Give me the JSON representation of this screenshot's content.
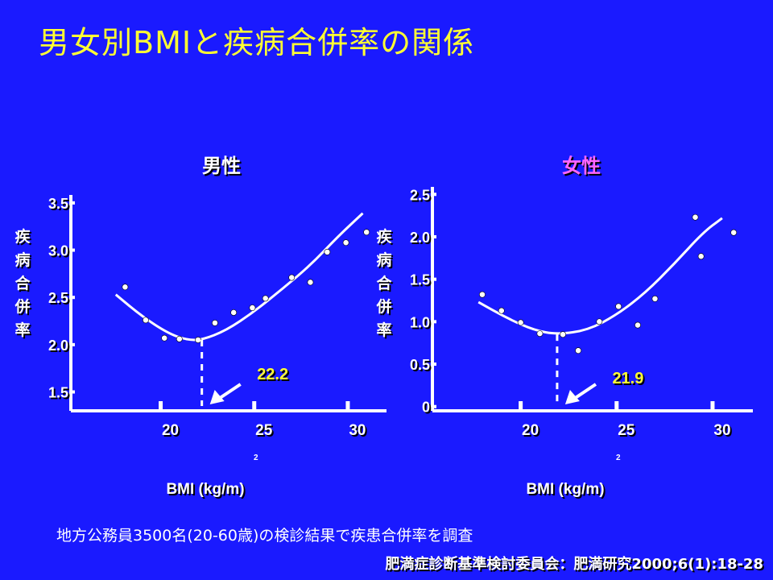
{
  "title": "男女別BMIと疾病合併率の関係",
  "note": "地方公務員3500名(20-60歳)の検診結果で疾患合併率を調査",
  "reference": "肥満症診断基準検討委員会：肥満研究2000;6(1):18-28",
  "colors": {
    "background": "#1a1aff",
    "title": "#ffff33",
    "male_title": "#ffffff",
    "female_title": "#ff66ff",
    "marks": "#ffffff"
  },
  "chart_data": [
    {
      "type": "scatter",
      "title": "男性",
      "xlabel": "BMI (kg/m)",
      "xlabel_superscript": "2",
      "ylabel": "疾病合併率",
      "xlim": [
        15.2,
        32.8
      ],
      "ylim": [
        1.3,
        3.55
      ],
      "xticks": [
        20,
        25,
        30
      ],
      "yticks": [
        1.5,
        2.0,
        2.5,
        3.0,
        3.5
      ],
      "ytick_labels": [
        "1.5",
        "2.0",
        "2.5",
        "3.0",
        "3.5"
      ],
      "points": [
        [
          18.1,
          2.61
        ],
        [
          19.2,
          2.26
        ],
        [
          20.2,
          2.07
        ],
        [
          21.0,
          2.06
        ],
        [
          22.0,
          2.05
        ],
        [
          22.9,
          2.23
        ],
        [
          23.9,
          2.34
        ],
        [
          24.9,
          2.39
        ],
        [
          25.6,
          2.49
        ],
        [
          27.0,
          2.71
        ],
        [
          28.0,
          2.66
        ],
        [
          28.9,
          2.98
        ],
        [
          29.9,
          3.08
        ],
        [
          31.0,
          3.19
        ]
      ],
      "fit_curve": [
        [
          17.6,
          2.53
        ],
        [
          19.0,
          2.3
        ],
        [
          20.4,
          2.12
        ],
        [
          21.4,
          2.05
        ],
        [
          22.2,
          2.05
        ],
        [
          23.5,
          2.15
        ],
        [
          25.0,
          2.35
        ],
        [
          26.5,
          2.59
        ],
        [
          28.0,
          2.84
        ],
        [
          29.5,
          3.15
        ],
        [
          30.8,
          3.39
        ]
      ],
      "optimum": {
        "x": 22.2,
        "label": "22.2"
      }
    },
    {
      "type": "scatter",
      "title": "女性",
      "xlabel": "BMI (kg/m)",
      "xlabel_superscript": "2",
      "ylabel": "疾病合併率",
      "xlim": [
        15.4,
        32.1
      ],
      "ylim": [
        -0.05,
        2.55
      ],
      "xticks": [
        20,
        25,
        30
      ],
      "yticks": [
        0,
        0.5,
        1.0,
        1.5,
        2.0,
        2.5
      ],
      "ytick_labels": [
        "0",
        "0.5",
        "1.0",
        "1.5",
        "2.0",
        "2.5"
      ],
      "points": [
        [
          18.0,
          1.32
        ],
        [
          19.0,
          1.13
        ],
        [
          20.0,
          0.99
        ],
        [
          21.0,
          0.86
        ],
        [
          22.2,
          0.85
        ],
        [
          23.0,
          0.66
        ],
        [
          24.1,
          1.0
        ],
        [
          25.1,
          1.18
        ],
        [
          26.1,
          0.96
        ],
        [
          27.0,
          1.27
        ],
        [
          29.1,
          2.23
        ],
        [
          29.4,
          1.77
        ],
        [
          31.1,
          2.05
        ]
      ],
      "fit_curve": [
        [
          17.8,
          1.23
        ],
        [
          19.3,
          1.04
        ],
        [
          20.7,
          0.9
        ],
        [
          21.9,
          0.85
        ],
        [
          23.5,
          0.9
        ],
        [
          25.0,
          1.08
        ],
        [
          26.5,
          1.34
        ],
        [
          28.0,
          1.68
        ],
        [
          29.5,
          2.05
        ],
        [
          30.5,
          2.22
        ]
      ],
      "optimum": {
        "x": 21.9,
        "label": "21.9"
      }
    }
  ]
}
